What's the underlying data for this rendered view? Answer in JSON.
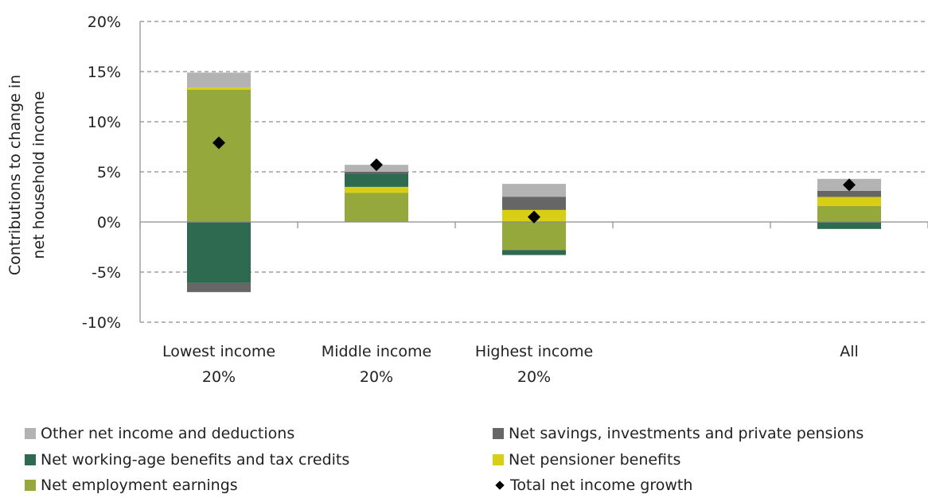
{
  "chart_data": {
    "type": "bar",
    "stacked": true,
    "categories": [
      [
        "Lowest income",
        "20%"
      ],
      [
        "Middle income",
        "20%"
      ],
      [
        "Highest income",
        "20%"
      ],
      [
        ""
      ],
      [
        "All"
      ]
    ],
    "ylabel": [
      "Contributions to change in",
      "net household income"
    ],
    "ylim": [
      -10,
      20
    ],
    "yticks": [
      -10,
      -5,
      0,
      5,
      10,
      15,
      20
    ],
    "ytick_labels": [
      "-10%",
      "-5%",
      "0%",
      "5%",
      "10%",
      "15%",
      "20%"
    ],
    "grid": true,
    "series": [
      {
        "name": "Net employment earnings",
        "color": "#94a83b",
        "values": [
          13.2,
          2.9,
          -2.8,
          0,
          1.6
        ]
      },
      {
        "name": "Net pensioner benefits",
        "color": "#d8cf14",
        "values": [
          0.2,
          0.6,
          1.2,
          0,
          0.9
        ]
      },
      {
        "name": "Net working-age benefits and tax credits",
        "color": "#2e6a4f",
        "values": [
          -6.1,
          1.3,
          -0.5,
          0,
          -0.7
        ]
      },
      {
        "name": "Net savings, investments and private pensions",
        "color": "#666666",
        "values": [
          -0.9,
          0.2,
          1.3,
          0,
          0.6
        ]
      },
      {
        "name": "Other net income and deductions",
        "color": "#b3b3b3",
        "values": [
          1.5,
          0.7,
          1.3,
          0,
          1.2
        ]
      }
    ],
    "markers": {
      "name": "Total net income growth",
      "values": [
        7.9,
        5.7,
        0.5,
        null,
        3.7
      ]
    }
  },
  "legend": [
    {
      "label": "Other net income and deductions",
      "icon": "square",
      "color": "#b3b3b3"
    },
    {
      "label": "Net savings, investments and private pensions",
      "icon": "square",
      "color": "#666666"
    },
    {
      "label": "Net working-age benefits and tax credits",
      "icon": "square",
      "color": "#2e6a4f"
    },
    {
      "label": "Net pensioner benefits",
      "icon": "square",
      "color": "#d8cf14"
    },
    {
      "label": "Net employment earnings",
      "icon": "square",
      "color": "#94a83b"
    },
    {
      "label": "Total net income growth",
      "icon": "diamond",
      "color": "#000000"
    }
  ]
}
